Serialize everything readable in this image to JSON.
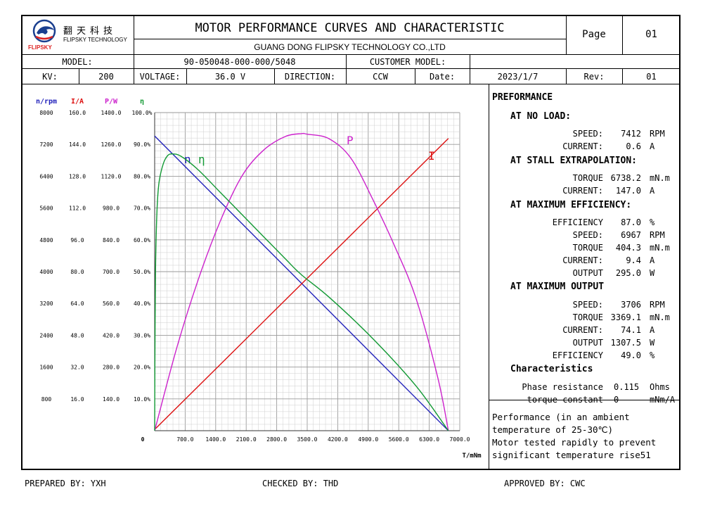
{
  "header": {
    "logo_cn": "翻天科技",
    "logo_en": "FLIPSKY TECHNOLOGY",
    "logo_brand": "FLIPSKY",
    "title": "MOTOR PERFORMANCE CURVES AND CHARACTERISTIC",
    "company": "GUANG DONG FLIPSKY TECHNOLOGY CO.,LTD",
    "page_label": "Page",
    "page_value": "01",
    "model_label": "MODEL:",
    "model_value": "90-050048-000-000/5048",
    "customer_model_label": "CUSTOMER MODEL:",
    "customer_model_value": "",
    "kv_label": "KV:",
    "kv_value": "200",
    "voltage_label": "VOLTAGE:",
    "voltage_value": "36.0  V",
    "direction_label": "DIRECTION:",
    "direction_value": "CCW",
    "date_label": "Date:",
    "date_value": "2023/1/7",
    "rev_label": "Rev:",
    "rev_value": "01"
  },
  "performance": {
    "title": "PREFORMANCE",
    "no_load": {
      "label": "AT NO LOAD:",
      "rows": [
        [
          "SPEED:",
          "7412",
          "RPM"
        ],
        [
          "CURRENT:",
          "0.6",
          "A"
        ]
      ]
    },
    "stall": {
      "label": "AT STALL EXTRAPOLATION:",
      "rows": [
        [
          "TORQUE",
          "6738.2",
          "mN.m"
        ],
        [
          "CURRENT:",
          "147.0",
          "A"
        ]
      ]
    },
    "max_eff": {
      "label": "AT MAXIMUM EFFICIENCY:",
      "rows": [
        [
          "EFFICIENCY",
          "87.0",
          "%"
        ],
        [
          "SPEED:",
          "6967",
          "RPM"
        ],
        [
          "TORQUE",
          "404.3",
          "mN.m"
        ],
        [
          "CURRENT:",
          "9.4",
          "A"
        ],
        [
          "OUTPUT",
          "295.0",
          "W"
        ]
      ]
    },
    "max_out": {
      "label": "AT MAXIMUM OUTPUT",
      "rows": [
        [
          "SPEED:",
          "3706",
          "RPM"
        ],
        [
          "TORQUE",
          "3369.1",
          "mN.m"
        ],
        [
          "CURRENT:",
          "74.1",
          "A"
        ],
        [
          "OUTPUT",
          "1307.5",
          "W"
        ],
        [
          "EFFICIENCY",
          "49.0",
          "%"
        ]
      ]
    },
    "characteristics": {
      "label": "Characteristics",
      "rows": [
        [
          "Phase resistance",
          "0.115",
          "Ohms"
        ],
        [
          "torque constant",
          "0",
          "mNm/A"
        ]
      ]
    }
  },
  "note": {
    "lines": [
      "Performance (in an ambient",
      "temperature of 25-30℃)",
      "Motor tested rapidly to prevent",
      "significant temperature rise51"
    ]
  },
  "footer": {
    "prepared": "PREPARED BY: YXH",
    "checked": "CHECKED BY: THD",
    "approved": "APPROVED BY: CWC"
  },
  "colors": {
    "speed": "#2222bb",
    "current": "#dd1111",
    "power": "#cc22cc",
    "efficiency": "#119933"
  },
  "chart_data": {
    "type": "line",
    "xlabel": "T/mNm",
    "x_origin_label": "0",
    "x_ticks": [
      "700.0",
      "1400.0",
      "2100.0",
      "2800.0",
      "3500.0",
      "4200.0",
      "4900.0",
      "5600.0",
      "6300.0",
      "7000.0"
    ],
    "xlim": [
      0,
      7000
    ],
    "axes": [
      {
        "key": "speed",
        "label": "n/rpm",
        "ticks": [
          "800",
          "1600",
          "2400",
          "3200",
          "4000",
          "4800",
          "5600",
          "6400",
          "7200",
          "8000"
        ],
        "max": 8000
      },
      {
        "key": "current",
        "label": "I/A",
        "ticks": [
          "16.0",
          "32.0",
          "48.0",
          "64.0",
          "80.0",
          "96.0",
          "112.0",
          "128.0",
          "144.0",
          "160.0"
        ],
        "max": 160
      },
      {
        "key": "power",
        "label": "P/W",
        "ticks": [
          "140.0",
          "280.0",
          "420.0",
          "560.0",
          "700.0",
          "840.0",
          "980.0",
          "1120.0",
          "1260.0",
          "1400.0"
        ],
        "max": 1400
      },
      {
        "key": "efficiency",
        "label": "η",
        "ticks": [
          "10.0%",
          "20.0%",
          "30.0%",
          "40.0%",
          "50.0%",
          "60.0%",
          "70.0%",
          "80.0%",
          "90.0%",
          "100.0%"
        ],
        "max": 100
      }
    ],
    "grid": true,
    "series": [
      {
        "name": "n",
        "key": "speed",
        "x": [
          0,
          6738.2
        ],
        "y": [
          7412,
          0
        ]
      },
      {
        "name": "I",
        "key": "current",
        "x": [
          0,
          6738.2
        ],
        "y": [
          0.6,
          147.0
        ]
      },
      {
        "name": "P",
        "key": "power",
        "x": [
          0,
          500,
          1000,
          1500,
          2000,
          2500,
          3000,
          3369.1,
          3500,
          4000,
          4500,
          5000,
          5500,
          6000,
          6500,
          6738.2
        ],
        "y": [
          0,
          360,
          665,
          920,
          1120,
          1235,
          1295,
          1307.5,
          1305,
          1285,
          1200,
          1020,
          815,
          580,
          230,
          0
        ]
      },
      {
        "name": "η",
        "key": "efficiency",
        "x": [
          0,
          5,
          20,
          50,
          100,
          200,
          300,
          404.3,
          600,
          1000,
          1500,
          2000,
          3000,
          3369.1,
          4000,
          5000,
          6000,
          6738.2
        ],
        "y": [
          0,
          20,
          50,
          68,
          78,
          84,
          86.5,
          87.0,
          86.3,
          82,
          75,
          68,
          54,
          49.0,
          42,
          29,
          14,
          0
        ]
      }
    ]
  }
}
